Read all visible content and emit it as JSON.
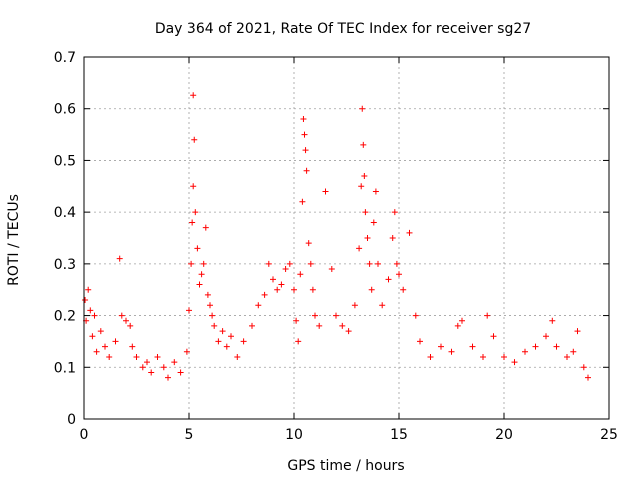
{
  "chart_data": {
    "type": "scatter",
    "title": "Day 364 of 2021, Rate Of TEC Index for receiver sg27",
    "xlabel": "GPS time / hours",
    "ylabel": "ROTI / TECUs",
    "xlim": [
      0,
      25
    ],
    "ylim": [
      0,
      0.7
    ],
    "xticks": [
      0,
      5,
      10,
      15,
      20,
      25
    ],
    "yticks": [
      0,
      0.1,
      0.2,
      0.3,
      0.4,
      0.5,
      0.6,
      0.7
    ],
    "xtick_labels": [
      "0",
      "5",
      "10",
      "15",
      "20",
      "25"
    ],
    "ytick_labels": [
      "0",
      "0.1",
      "0.2",
      "0.3",
      "0.4",
      "0.5",
      "0.6",
      "0.7"
    ],
    "grid": true,
    "marker": "+",
    "colors": {
      "series": "#ff0000",
      "grid": "#a0a0a0",
      "axis": "#000000"
    },
    "series": [
      {
        "name": "ROTI",
        "x": [
          0.05,
          0.1,
          0.2,
          0.3,
          0.4,
          0.5,
          0.6,
          0.8,
          1.0,
          1.2,
          1.5,
          1.7,
          1.8,
          2.0,
          2.2,
          2.3,
          2.5,
          2.8,
          3.0,
          3.2,
          3.5,
          3.8,
          4.0,
          4.3,
          4.6,
          4.9,
          5.0,
          5.1,
          5.15,
          5.2,
          5.2,
          5.25,
          5.3,
          5.4,
          5.5,
          5.6,
          5.7,
          5.8,
          5.9,
          6.0,
          6.1,
          6.2,
          6.4,
          6.6,
          6.8,
          7.0,
          7.3,
          7.6,
          8.0,
          8.3,
          8.6,
          8.8,
          9.0,
          9.2,
          9.4,
          9.6,
          9.8,
          10.0,
          10.1,
          10.2,
          10.3,
          10.4,
          10.45,
          10.5,
          10.55,
          10.6,
          10.7,
          10.8,
          10.9,
          11.0,
          11.2,
          11.5,
          11.8,
          12.0,
          12.3,
          12.6,
          12.9,
          13.1,
          13.2,
          13.25,
          13.3,
          13.35,
          13.4,
          13.5,
          13.6,
          13.7,
          13.8,
          13.9,
          14.0,
          14.2,
          14.5,
          14.7,
          14.8,
          14.9,
          15.0,
          15.2,
          15.5,
          15.8,
          16.0,
          16.5,
          17.0,
          17.5,
          17.8,
          18.0,
          18.5,
          19.0,
          19.2,
          19.5,
          20.0,
          20.5,
          21.0,
          21.5,
          22.0,
          22.3,
          22.5,
          23.0,
          23.3,
          23.5,
          23.8,
          24.0
        ],
        "y": [
          0.23,
          0.19,
          0.25,
          0.21,
          0.16,
          0.2,
          0.13,
          0.17,
          0.14,
          0.12,
          0.15,
          0.31,
          0.2,
          0.19,
          0.18,
          0.14,
          0.12,
          0.1,
          0.11,
          0.09,
          0.12,
          0.1,
          0.08,
          0.11,
          0.09,
          0.13,
          0.21,
          0.3,
          0.38,
          0.626,
          0.45,
          0.54,
          0.4,
          0.33,
          0.26,
          0.28,
          0.3,
          0.37,
          0.24,
          0.22,
          0.2,
          0.18,
          0.15,
          0.17,
          0.14,
          0.16,
          0.12,
          0.15,
          0.18,
          0.22,
          0.24,
          0.3,
          0.27,
          0.25,
          0.26,
          0.29,
          0.3,
          0.25,
          0.19,
          0.15,
          0.28,
          0.42,
          0.58,
          0.55,
          0.52,
          0.48,
          0.34,
          0.3,
          0.25,
          0.2,
          0.18,
          0.44,
          0.29,
          0.2,
          0.18,
          0.17,
          0.22,
          0.33,
          0.45,
          0.6,
          0.53,
          0.47,
          0.4,
          0.35,
          0.3,
          0.25,
          0.38,
          0.44,
          0.3,
          0.22,
          0.27,
          0.35,
          0.4,
          0.3,
          0.28,
          0.25,
          0.36,
          0.2,
          0.15,
          0.12,
          0.14,
          0.13,
          0.18,
          0.19,
          0.14,
          0.12,
          0.2,
          0.16,
          0.12,
          0.11,
          0.13,
          0.14,
          0.16,
          0.19,
          0.14,
          0.12,
          0.13,
          0.17,
          0.1,
          0.08
        ]
      }
    ]
  }
}
